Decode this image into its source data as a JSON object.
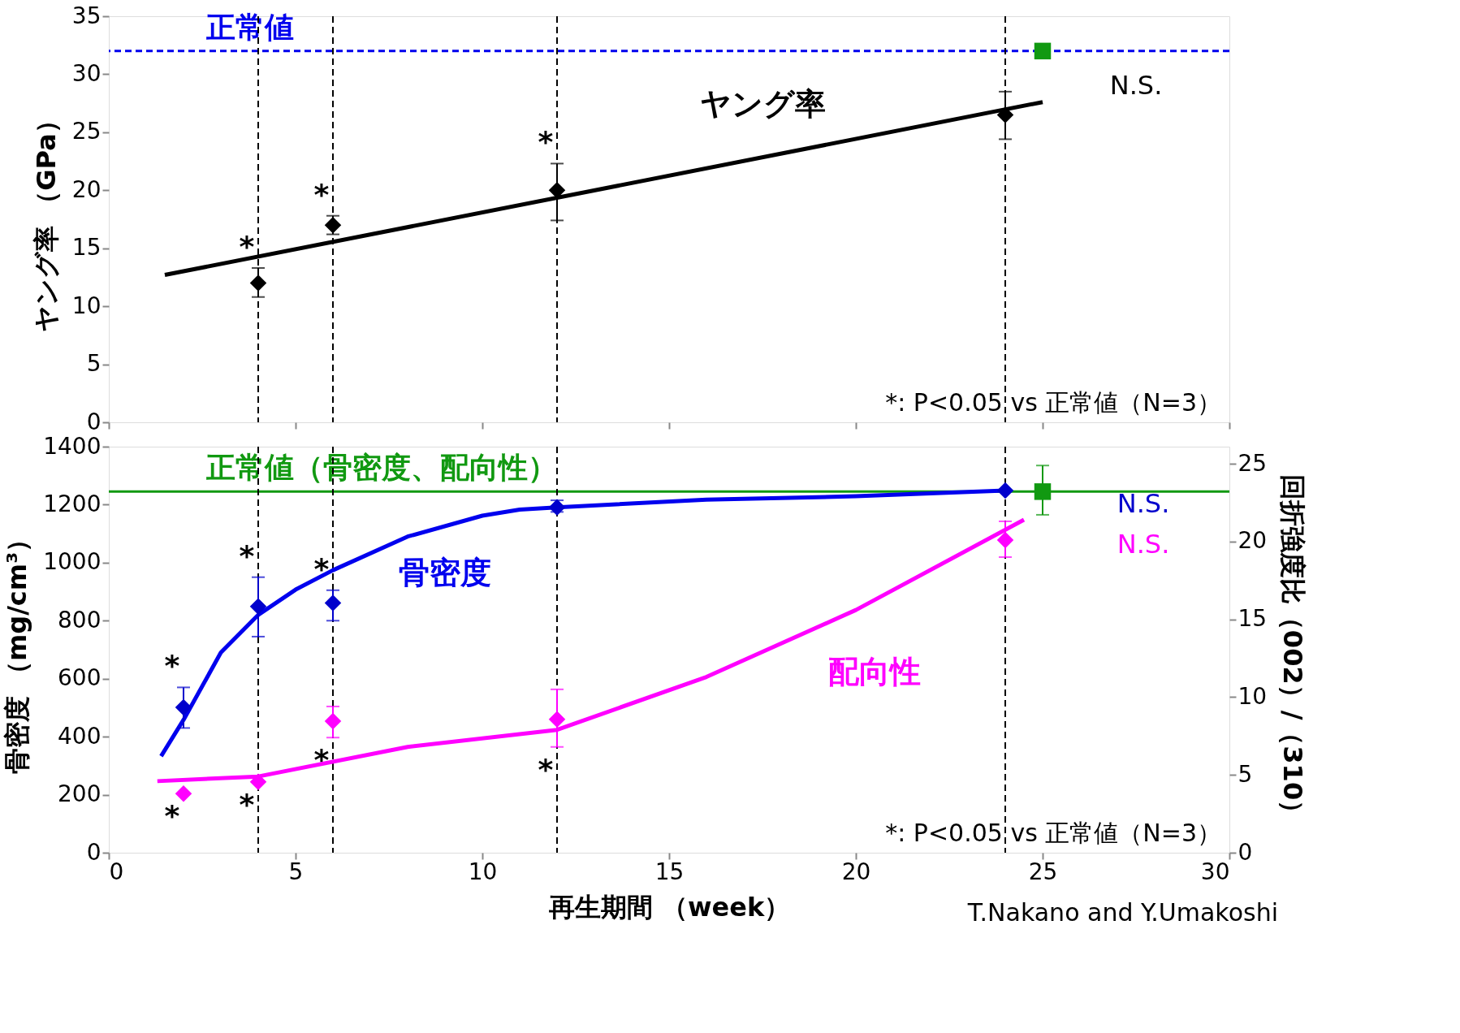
{
  "chart_data": [
    {
      "type": "scatter",
      "xlim": [
        0,
        30
      ],
      "xticks": [
        0,
        5,
        10,
        15,
        20,
        25,
        30
      ],
      "ylim": [
        0,
        35
      ],
      "yticks": [
        0,
        5,
        10,
        15,
        20,
        25,
        30,
        35
      ],
      "ylabel": "ヤング率 （GPa）",
      "tick_labels": "y",
      "series": [
        {
          "type": "line",
          "color": "#000000",
          "x": [
            1.5,
            25
          ],
          "values": [
            12.7,
            27.6
          ]
        },
        {
          "color": "#000000",
          "marker": "diamond",
          "x": [
            4,
            6,
            12,
            24
          ],
          "values": [
            12,
            17,
            20,
            26.5
          ],
          "errors": [
            [
              10.8,
              13.3
            ],
            [
              16.2,
              17.8
            ],
            [
              17.4,
              22.3
            ],
            [
              24.4,
              28.5
            ]
          ]
        },
        {
          "color": "#119911",
          "marker": "square",
          "x": [
            25
          ],
          "values": [
            32
          ]
        }
      ],
      "ref_lines": [
        {
          "axis": "y",
          "value": 32,
          "label": "正常値",
          "color": "#0000ee",
          "line_style": "dashed"
        },
        {
          "axis": "x",
          "value": 4,
          "color": "#000000",
          "line_style": "dashed"
        },
        {
          "axis": "x",
          "value": 6,
          "color": "#000000",
          "line_style": "dashed"
        },
        {
          "axis": "x",
          "value": 12,
          "color": "#000000",
          "line_style": "dashed"
        },
        {
          "axis": "x",
          "value": 24,
          "color": "#000000",
          "line_style": "dashed"
        }
      ],
      "annotations": [
        "*: P<0.05 vs 正常値（N=3）",
        "ヤング率",
        "N.S.",
        {
          "text": "*",
          "x": 4,
          "y": 13.3
        },
        {
          "text": "*",
          "x": 6,
          "y": 17.8
        },
        {
          "text": "*",
          "x": 12,
          "y": 22.3
        }
      ]
    },
    {
      "type": "scatter",
      "xlim": [
        0,
        30
      ],
      "xticks": [
        0,
        5,
        10,
        15,
        20,
        25,
        30
      ],
      "ylim": [
        0,
        1400
      ],
      "yticks": [
        0,
        200,
        400,
        600,
        800,
        1000,
        1200,
        1400
      ],
      "y2lim": [
        0,
        26.1
      ],
      "y2ticks": [
        0,
        5,
        10,
        15,
        20,
        25
      ],
      "xlabel": "再生期間 （week）",
      "ylabel": "骨密度 （mg/cm³）",
      "y2label": "回折強度比（002）/（310）",
      "series": [
        {
          "type": "line",
          "color": "#0000ee",
          "x": [
            1.4,
            2,
            3,
            4,
            5,
            6,
            8,
            10,
            11,
            12,
            16,
            20,
            24
          ],
          "values": [
            333,
            458,
            690,
            820,
            907,
            974,
            1090,
            1162,
            1183,
            1191,
            1217,
            1229,
            1249
          ]
        },
        {
          "color": "#0000cc",
          "marker": "diamond",
          "x": [
            2,
            4,
            6,
            12,
            24
          ],
          "values": [
            501,
            849,
            861,
            1191,
            1249
          ],
          "errors": [
            [
              430,
              570
            ],
            [
              745,
              950
            ],
            [
              800,
              905
            ],
            [
              1175,
              1215
            ],
            null
          ]
        },
        {
          "color": "#119911",
          "marker": "square",
          "x": [
            25
          ],
          "values": [
            1245
          ],
          "errors": [
            [
              1165,
              1335
            ]
          ]
        },
        {
          "type": "line",
          "axis": "y2",
          "color": "#ff00ff",
          "x": [
            1.3,
            4,
            8,
            12,
            16,
            20,
            24.5
          ],
          "values": [
            4.6,
            4.9,
            6.8,
            7.9,
            11.3,
            15.6,
            21.4
          ]
        },
        {
          "axis": "y2",
          "color": "#ff00ff",
          "marker": "diamond",
          "x": [
            2,
            4,
            6,
            12,
            24
          ],
          "values": [
            3.8,
            4.55,
            8.46,
            8.57,
            20.1
          ],
          "errors": [
            null,
            null,
            [
              7.4,
              9.4
            ],
            [
              6.8,
              10.5
            ],
            [
              19.0,
              21.3
            ]
          ]
        }
      ],
      "ref_lines": [
        {
          "axis": "y",
          "value": 1245,
          "label": "正常値（骨密度、配向性）",
          "color": "#119911",
          "line_style": "solid"
        },
        {
          "axis": "x",
          "value": 4,
          "color": "#000000",
          "line_style": "dashed"
        },
        {
          "axis": "x",
          "value": 6,
          "color": "#000000",
          "line_style": "dashed"
        },
        {
          "axis": "x",
          "value": 12,
          "color": "#000000",
          "line_style": "dashed"
        },
        {
          "axis": "x",
          "value": 24,
          "color": "#000000",
          "line_style": "dashed"
        }
      ],
      "annotations": [
        "*: P<0.05 vs 正常値（N=3）",
        "T.Nakano and Y.Umakoshi",
        "骨密度",
        "配向性",
        "N.S.",
        "N.S.",
        {
          "text": "*",
          "x": 2,
          "y": 570
        },
        {
          "text": "*",
          "x": 4,
          "y": 950
        },
        {
          "text": "*",
          "x": 6,
          "y": 905
        },
        {
          "text": "*",
          "x": 2,
          "y": 204
        },
        {
          "text": "*",
          "x": 4,
          "y": 244
        },
        {
          "text": "*",
          "x": 6,
          "y": 397
        },
        {
          "text": "*",
          "x": 12,
          "y": 365
        }
      ]
    }
  ]
}
